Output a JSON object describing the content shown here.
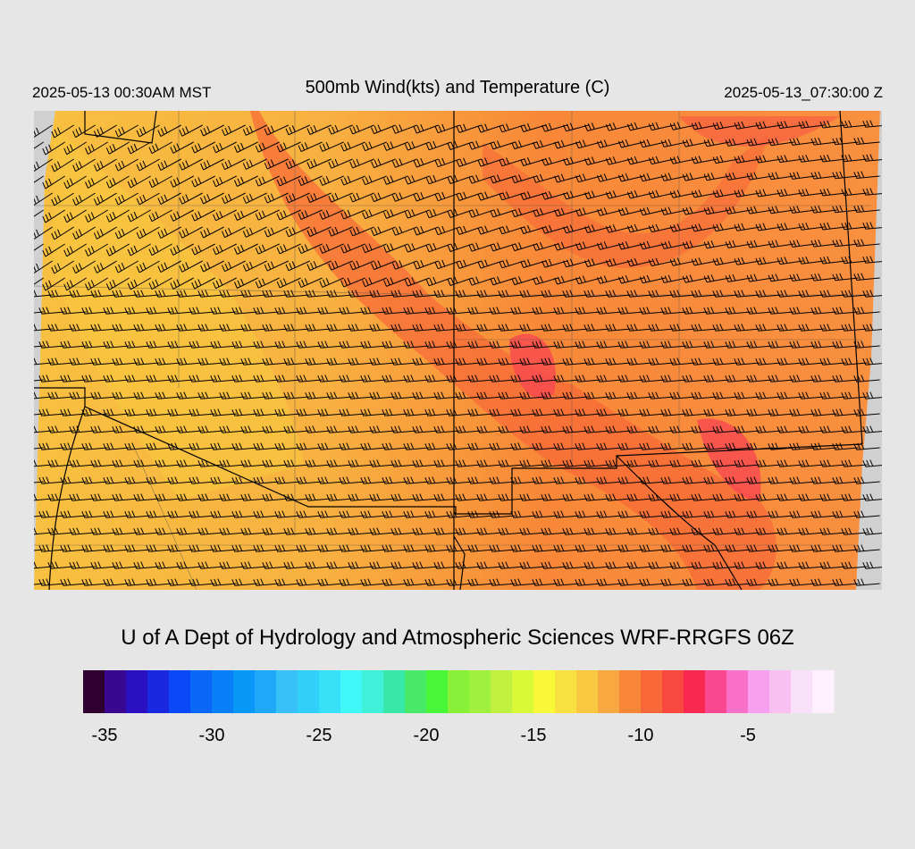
{
  "header": {
    "left": "2025-05-13 00:30AM MST",
    "title": "500mb Wind(kts) and Temperature (C)",
    "right": "2025-05-13_07:30:00 Z"
  },
  "footer": {
    "credit": "U of A Dept of Hydrology and Atmospheric Sciences WRF-RRGFS 06Z"
  },
  "colorbar": {
    "lim": [
      -36,
      -1
    ],
    "ticks": [
      -35,
      -30,
      -25,
      -20,
      -15,
      -10,
      -5
    ],
    "colors": [
      "#300030",
      "#3a0890",
      "#2a10c0",
      "#1a28e0",
      "#0a48f8",
      "#0a68f8",
      "#0a80f8",
      "#0a98f8",
      "#20a8f8",
      "#38c0f8",
      "#30d0f8",
      "#38e0f8",
      "#40f8f8",
      "#40f0d8",
      "#38e8a8",
      "#48e868",
      "#48f838",
      "#88f038",
      "#a0f040",
      "#c0f040",
      "#d8f838",
      "#f8f838",
      "#f8e040",
      "#f8c840",
      "#f8a840",
      "#f88838",
      "#f86838",
      "#f84840",
      "#f82850",
      "#f84890",
      "#f870c8",
      "#f8a0f0",
      "#f8c0f0",
      "#f8e0f8",
      "#fff0ff"
    ]
  }
}
